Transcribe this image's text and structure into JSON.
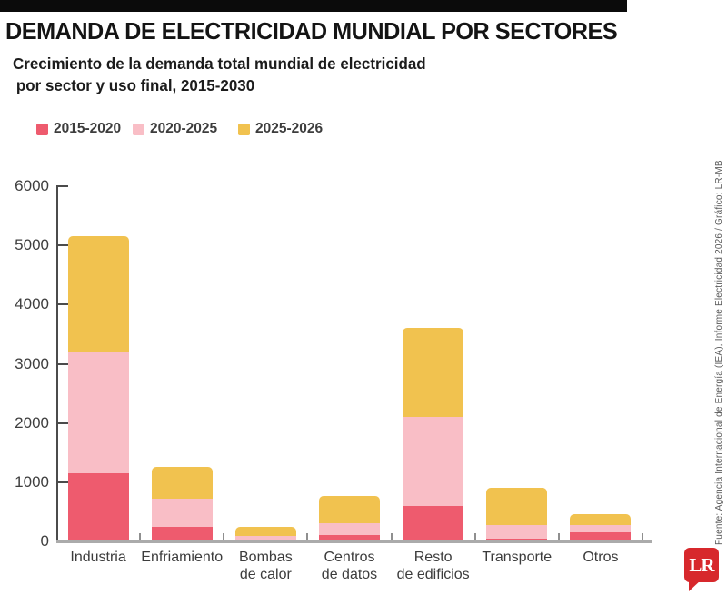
{
  "header": {
    "title": "DEMANDA DE ELECTRICIDAD MUNDIAL POR SECTORES",
    "subtitle_line1": "Crecimiento de la demanda total mundial de electricidad",
    "subtitle_line2": "por sector y uso final, 2015-2030"
  },
  "legend": [
    {
      "label": "2015-2020",
      "color": "#ee5b6e"
    },
    {
      "label": "2020-2025",
      "color": "#f9bec6"
    },
    {
      "label": "2025-2026",
      "color": "#f1c24f"
    }
  ],
  "chart_data": {
    "type": "bar",
    "stacked": true,
    "title": "Demanda de electricidad mundial por sectores",
    "categories": [
      "Industria",
      "Enfriamiento",
      "Bombas\nde calor",
      "Centros\nde datos",
      "Resto\nde edificios",
      "Transporte",
      "Otros"
    ],
    "series": [
      {
        "name": "2015-2020",
        "color": "#ee5b6e",
        "values": [
          1150,
          250,
          30,
          100,
          600,
          50,
          150
        ]
      },
      {
        "name": "2020-2025",
        "color": "#f9bec6",
        "values": [
          2050,
          470,
          60,
          200,
          1500,
          230,
          130
        ]
      },
      {
        "name": "2025-2026",
        "color": "#f1c24f",
        "values": [
          1950,
          540,
          160,
          470,
          1500,
          630,
          180
        ]
      }
    ],
    "totals": [
      5150,
      1260,
      250,
      770,
      3600,
      910,
      460
    ],
    "ylim": [
      0,
      6000
    ],
    "yticks": [
      0,
      1000,
      2000,
      3000,
      4000,
      5000,
      6000
    ],
    "grid": false,
    "legend_position": "top-left",
    "axis_color": "#4b4b4b",
    "baseline_color": "#ababab"
  },
  "footer": {
    "source_vertical": "Fuente: Agencia Internacional de Energía (IEA), Informe Electricidad 2026 / Gráfico: LR-MB",
    "logo_text": "LR",
    "logo_color": "#d7282c"
  }
}
